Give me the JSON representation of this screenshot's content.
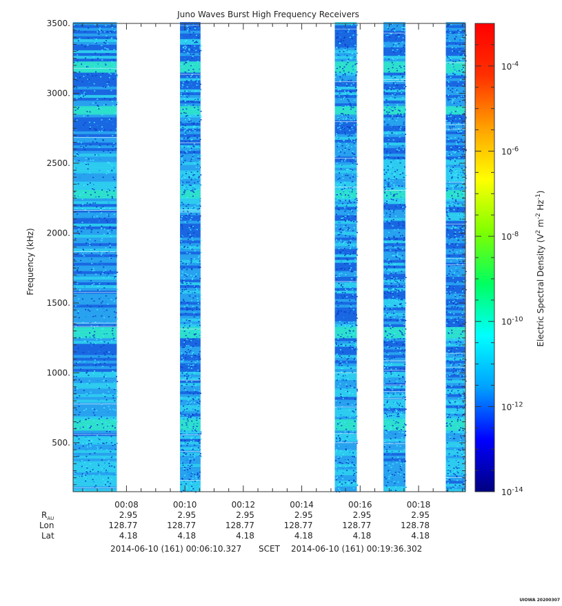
{
  "chart_data": {
    "type": "heatmap",
    "title": "Juno Waves Burst High Frequency Receivers",
    "ylabel": "Frequency (kHz)",
    "ylim": [
      150,
      3500
    ],
    "yticks": [
      500,
      1000,
      1500,
      2000,
      2500,
      3000,
      3500
    ],
    "ytick_labels": [
      "500.",
      "1000.",
      "1500.",
      "2000.",
      "2500.",
      "3000.",
      "3500."
    ],
    "xlim": [
      "00:06:10.327",
      "00:19:36.302"
    ],
    "xticks": [
      "00:08",
      "00:10",
      "00:12",
      "00:14",
      "00:16",
      "00:18"
    ],
    "colorbar": {
      "label": "Electric Spectral Density (V² m⁻² Hz⁻¹)",
      "label_text": "Electric Spectral Density (V",
      "label_sup1": "2",
      "label_mid": " m",
      "label_sup2": "-2",
      "label_hz": " Hz",
      "label_sup3": "-1",
      "label_end": ")",
      "scale": "log",
      "range": [
        1e-14,
        0.001
      ],
      "tick_bases": [
        "10",
        "10",
        "10",
        "10",
        "10",
        "10"
      ],
      "tick_exponents": [
        "-4",
        "-6",
        "-8",
        "-10",
        "-12",
        "-14"
      ],
      "tick_values": [
        0.0001,
        1e-06,
        1e-08,
        1e-10,
        1e-12,
        1e-14
      ],
      "colors": [
        "#000080",
        "#0000ff",
        "#00a0ff",
        "#00ffff",
        "#00ff60",
        "#80ff00",
        "#ffff00",
        "#ffa000",
        "#ff3000",
        "#ff0000"
      ]
    },
    "data_segments": [
      {
        "start": "00:06:10",
        "end": "00:07:40"
      },
      {
        "start": "00:09:50",
        "end": "00:10:32"
      },
      {
        "start": "00:15:08",
        "end": "00:15:53"
      },
      {
        "start": "00:16:48",
        "end": "00:17:33"
      },
      {
        "start": "00:18:56",
        "end": "00:19:36"
      }
    ],
    "bright_bands_khz": [
      620,
      1280,
      2270,
      2870,
      3180
    ],
    "ephemeris": {
      "row_labels": [
        "R",
        "Lon",
        "Lat"
      ],
      "r_subscript": "AU",
      "columns": [
        {
          "time": "00:08",
          "r": "2.95",
          "lon": "128.77",
          "lat": "4.18"
        },
        {
          "time": "00:10",
          "r": "2.95",
          "lon": "128.77",
          "lat": "4.18"
        },
        {
          "time": "00:12",
          "r": "2.95",
          "lon": "128.77",
          "lat": "4.18"
        },
        {
          "time": "00:14",
          "r": "2.95",
          "lon": "128.77",
          "lat": "4.18"
        },
        {
          "time": "00:16",
          "r": "2.95",
          "lon": "128.77",
          "lat": "4.18"
        },
        {
          "time": "00:18",
          "r": "2.95",
          "lon": "128.78",
          "lat": "4.18"
        }
      ]
    },
    "time_range_text": {
      "start": "2014-06-10 (161) 00:06:10.327",
      "middle": "SCET",
      "end": "2014-06-10 (161) 00:19:36.302"
    },
    "footer": "UIOWA 20200307"
  }
}
